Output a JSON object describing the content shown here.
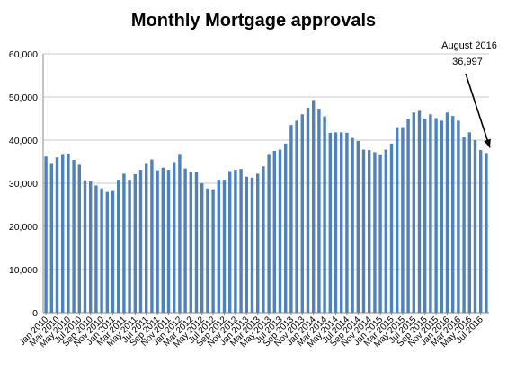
{
  "chart_data": {
    "type": "bar",
    "title": "Monthly Mortgage approvals",
    "xlabel": "",
    "ylabel": "",
    "ylim": [
      0,
      60000
    ],
    "yticks": [
      0,
      10000,
      20000,
      30000,
      40000,
      50000,
      60000
    ],
    "ytick_labels": [
      "0",
      "10,000",
      "20,000",
      "30,000",
      "40,000",
      "50,000",
      "60,000"
    ],
    "grid": true,
    "bar_color": "#4f81bd",
    "categories": [
      "Jan 2010",
      "Feb 2010",
      "Mar 2010",
      "Apr 2010",
      "May 2010",
      "Jun 2010",
      "Jul 2010",
      "Aug 2010",
      "Sep 2010",
      "Oct 2010",
      "Nov 2010",
      "Dec 2010",
      "Jan 2011",
      "Feb 2011",
      "Mar 2011",
      "Apr 2011",
      "May 2011",
      "Jun 2011",
      "Jul 2011",
      "Aug 2011",
      "Sep 2011",
      "Oct 2011",
      "Nov 2011",
      "Dec 2011",
      "Jan 2012",
      "Feb 2012",
      "Mar 2012",
      "Apr 2012",
      "May 2012",
      "Jun 2012",
      "Jul 2012",
      "Aug 2012",
      "Sep 2012",
      "Oct 2012",
      "Nov 2012",
      "Dec 2012",
      "Jan 2013",
      "Feb 2013",
      "Mar 2013",
      "Apr 2013",
      "May 2013",
      "Jun 2013",
      "Jul 2013",
      "Aug 2013",
      "Sep 2013",
      "Oct 2013",
      "Nov 2013",
      "Dec 2013",
      "Jan 2014",
      "Feb 2014",
      "Mar 2014",
      "Apr 2014",
      "May 2014",
      "Jun 2014",
      "Jul 2014",
      "Aug 2014",
      "Sep 2014",
      "Oct 2014",
      "Nov 2014",
      "Dec 2014",
      "Jan 2015",
      "Feb 2015",
      "Mar 2015",
      "Apr 2015",
      "May 2015",
      "Jun 2015",
      "Jul 2015",
      "Aug 2015",
      "Sep 2015",
      "Oct 2015",
      "Nov 2015",
      "Dec 2015",
      "Jan 2016",
      "Feb 2016",
      "Mar 2016",
      "Apr 2016",
      "May 2016",
      "Jun 2016",
      "Jul 2016",
      "Aug 2016"
    ],
    "values": [
      36200,
      34500,
      36000,
      36800,
      36900,
      35400,
      34300,
      30700,
      30400,
      29500,
      28800,
      28000,
      28200,
      30800,
      32200,
      30800,
      32100,
      33100,
      34500,
      35500,
      33000,
      33600,
      33100,
      34900,
      36800,
      33400,
      32600,
      32500,
      30000,
      28800,
      28600,
      30800,
      30800,
      32800,
      33100,
      33300,
      31500,
      31300,
      32200,
      33900,
      36800,
      37500,
      37800,
      39200,
      43500,
      44500,
      46000,
      47500,
      49300,
      47300,
      45500,
      41700,
      41800,
      41800,
      41700,
      40500,
      39800,
      37800,
      37700,
      37200,
      36700,
      37800,
      39200,
      43000,
      43000,
      45000,
      46400,
      46800,
      45000,
      46000,
      45100,
      44500,
      46400,
      45600,
      44500,
      40700,
      41800,
      40000,
      37700,
      36997
    ],
    "x_tick_labels": [
      "Jan 2010",
      "Mar 2010",
      "May 2010",
      "Jul 2010",
      "Sep 2010",
      "Nov 2010",
      "Jan 2011",
      "Mar 2011",
      "May 2011",
      "Jul 2011",
      "Sep 2011",
      "Nov 2011",
      "Jan 2012",
      "Mar 2012",
      "May 2012",
      "Jul 2012",
      "Sep 2012",
      "Nov 2012",
      "Jan 2013",
      "Mar 2013",
      "May 2013",
      "Jul 2013",
      "Sep 2013",
      "Nov 2013",
      "Jan 2014",
      "Mar 2014",
      "May 2014",
      "Jul 2014",
      "Sep 2014",
      "Nov 2014",
      "Jan 2015",
      "Mar 2015",
      "May 2015",
      "Jul 2015",
      "Sep 2015",
      "Nov 2015",
      "Jan 2016",
      "Mar 2016",
      "May 2016",
      "Jul 2016"
    ],
    "annotation": {
      "line1": "August 2016",
      "line2": "36,997",
      "target_category": "Aug 2016"
    }
  }
}
